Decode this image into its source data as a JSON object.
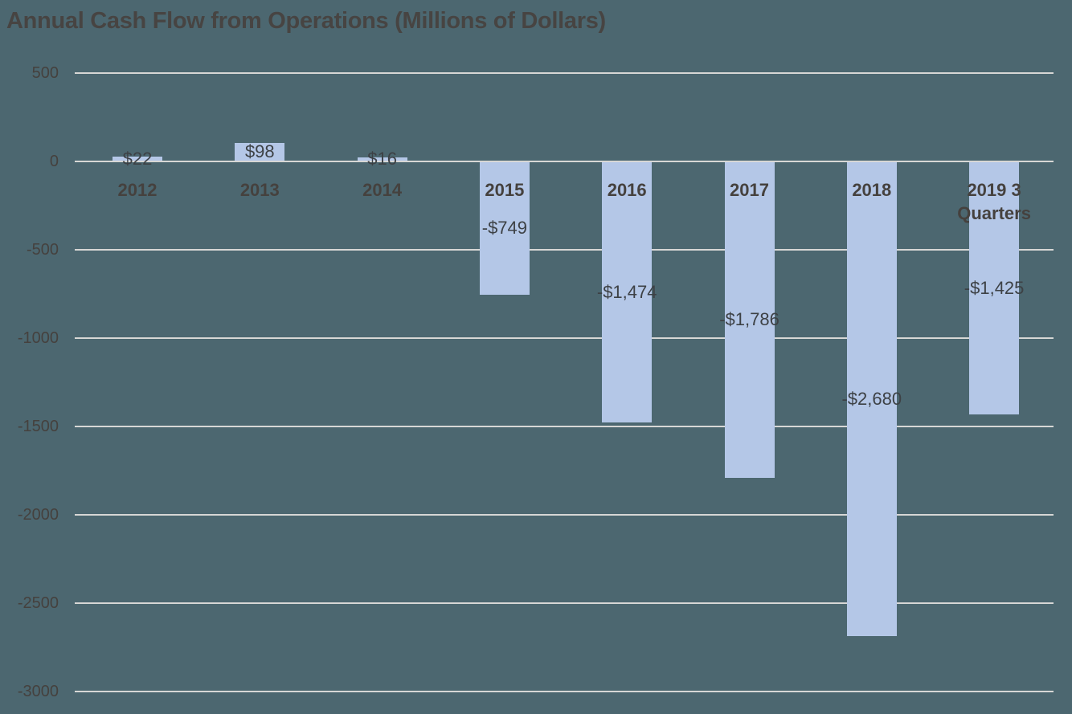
{
  "chart_data": {
    "type": "bar",
    "title": "Annual Cash Flow from Operations (Millions of Dollars)",
    "categories": [
      "2012",
      "2013",
      "2014",
      "2015",
      "2016",
      "2017",
      "2018",
      "2019 3 Quarters"
    ],
    "values": [
      22,
      98,
      16,
      -749,
      -1474,
      -1786,
      -2680,
      -1425
    ],
    "data_labels": [
      "$22",
      "$98",
      "$16",
      "-$749",
      "-$1,474",
      "-$1,786",
      "-$2,680",
      "-$1,425"
    ],
    "data_label_position": "inside-center",
    "xlabel": "",
    "ylabel": "",
    "ylim": [
      -3000,
      500
    ],
    "yticks": [
      {
        "value": 500,
        "label": "500"
      },
      {
        "value": 0,
        "label": "0"
      },
      {
        "value": -500,
        "label": "-500"
      },
      {
        "value": -1000,
        "label": "-1000"
      },
      {
        "value": -1500,
        "label": "-1500"
      },
      {
        "value": -2000,
        "label": "-2000"
      },
      {
        "value": -2500,
        "label": "-2500"
      },
      {
        "value": -3000,
        "label": "-3000"
      }
    ],
    "grid": true,
    "legend": false
  },
  "colors": {
    "background": "#4c6770",
    "bar": "#b4c7e7",
    "gridline": "#d7d7d5",
    "title_text": "#474442",
    "axis_text": "#45413e",
    "data_label_text": "#3d4145"
  }
}
